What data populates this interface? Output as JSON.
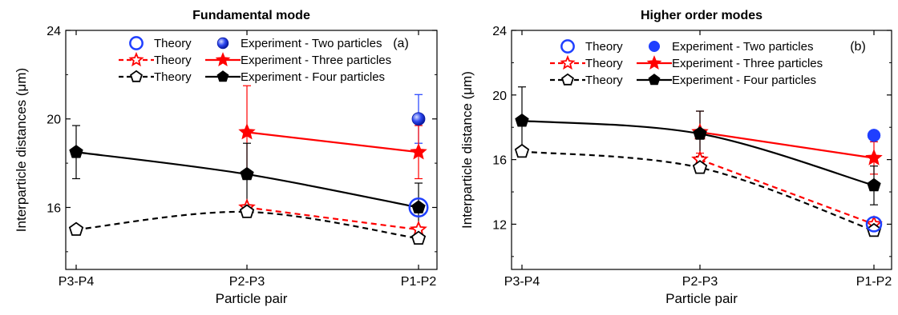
{
  "chart_data": [
    {
      "type": "line",
      "title": "Fundamental mode",
      "panel_label": "(a)",
      "xlabel": "Particle pair",
      "ylabel": "Interparticle distances (μm)",
      "categories": [
        "P3-P4",
        "P2-P3",
        "P1-P2"
      ],
      "ylim": [
        13.2,
        24
      ],
      "yticks": [
        "16",
        "20",
        "24"
      ],
      "legend_placement": "top-right",
      "legend": [
        {
          "theory": "Theory",
          "experiment": "Experiment - Two particles",
          "color": "#1f3fff",
          "theory_marker": "circle-open",
          "exp_marker": "sphere"
        },
        {
          "theory": "Theory",
          "experiment": "Experiment - Three particles",
          "color": "#ff0000",
          "theory_marker": "star-open",
          "exp_marker": "star"
        },
        {
          "theory": "Theory",
          "experiment": "Experiment - Four particles",
          "color": "#000000",
          "theory_marker": "pentagon-open",
          "exp_marker": "pentagon"
        }
      ],
      "series": [
        {
          "group": "two",
          "kind": "theory",
          "marker": "circle-open",
          "color": "#1f3fff",
          "line": "none",
          "points": [
            {
              "x": "P1-P2",
              "y": 16.0
            }
          ]
        },
        {
          "group": "two",
          "kind": "experiment",
          "marker": "sphere",
          "color": "#1f3fff",
          "line": "none",
          "points": [
            {
              "x": "P1-P2",
              "y": 20.0,
              "err": 1.1
            }
          ]
        },
        {
          "group": "three",
          "kind": "theory",
          "marker": "star-open",
          "color": "#ff0000",
          "line": "dashed",
          "points": [
            {
              "x": "P2-P3",
              "y": 16.0
            },
            {
              "x": "P1-P2",
              "y": 15.0
            }
          ]
        },
        {
          "group": "three",
          "kind": "experiment",
          "marker": "star",
          "color": "#ff0000",
          "line": "solid",
          "points": [
            {
              "x": "P2-P3",
              "y": 19.4,
              "err": 2.1
            },
            {
              "x": "P1-P2",
              "y": 18.5,
              "err": 1.2
            }
          ]
        },
        {
          "group": "four",
          "kind": "theory",
          "marker": "pentagon-open",
          "color": "#000000",
          "line": "dashed-curve",
          "points": [
            {
              "x": "P3-P4",
              "y": 15.0
            },
            {
              "x": "P2-P3",
              "y": 15.8
            },
            {
              "x": "P1-P2",
              "y": 14.6
            }
          ]
        },
        {
          "group": "four",
          "kind": "experiment",
          "marker": "pentagon",
          "color": "#000000",
          "line": "solid-curve",
          "points": [
            {
              "x": "P3-P4",
              "y": 18.5,
              "err": 1.2
            },
            {
              "x": "P2-P3",
              "y": 17.5,
              "err": 1.4
            },
            {
              "x": "P1-P2",
              "y": 16.0,
              "err": 1.1
            }
          ]
        }
      ]
    },
    {
      "type": "line",
      "title": "Higher order modes",
      "panel_label": "(b)",
      "xlabel": "Particle pair",
      "ylabel": "Interparticle distance (μm)",
      "categories": [
        "P3-P4",
        "P2-P3",
        "P1-P2"
      ],
      "ylim": [
        9.2,
        24
      ],
      "yticks": [
        "12",
        "16",
        "20",
        "24"
      ],
      "legend_placement": "top-right",
      "legend": [
        {
          "theory": "Theory",
          "experiment": "Experiment - Two particles",
          "color": "#1f3fff",
          "theory_marker": "circle-open",
          "exp_marker": "dot"
        },
        {
          "theory": "Theory",
          "experiment": "Experiment - Three particles",
          "color": "#ff0000",
          "theory_marker": "star-open",
          "exp_marker": "star"
        },
        {
          "theory": "Theory",
          "experiment": "Experiment - Four particles",
          "color": "#000000",
          "theory_marker": "pentagon-open",
          "exp_marker": "pentagon"
        }
      ],
      "series": [
        {
          "group": "two",
          "kind": "theory",
          "marker": "circle-open",
          "color": "#1f3fff",
          "line": "none",
          "points": [
            {
              "x": "P1-P2",
              "y": 12.0
            }
          ]
        },
        {
          "group": "two",
          "kind": "experiment",
          "marker": "dot",
          "color": "#1f3fff",
          "line": "none",
          "points": [
            {
              "x": "P1-P2",
              "y": 17.5
            }
          ]
        },
        {
          "group": "three",
          "kind": "theory",
          "marker": "star-open",
          "color": "#ff0000",
          "line": "dashed",
          "points": [
            {
              "x": "P2-P3",
              "y": 16.0
            },
            {
              "x": "P1-P2",
              "y": 12.0
            }
          ]
        },
        {
          "group": "three",
          "kind": "experiment",
          "marker": "star",
          "color": "#ff0000",
          "line": "solid",
          "points": [
            {
              "x": "P2-P3",
              "y": 17.7,
              "err": 1.3
            },
            {
              "x": "P1-P2",
              "y": 16.1,
              "err": 1.0
            }
          ]
        },
        {
          "group": "four",
          "kind": "theory",
          "marker": "pentagon-open",
          "color": "#000000",
          "line": "dashed-curve",
          "points": [
            {
              "x": "P3-P4",
              "y": 16.5
            },
            {
              "x": "P2-P3",
              "y": 15.5
            },
            {
              "x": "P1-P2",
              "y": 11.6
            }
          ]
        },
        {
          "group": "four",
          "kind": "experiment",
          "marker": "pentagon",
          "color": "#000000",
          "line": "solid-curve",
          "points": [
            {
              "x": "P3-P4",
              "y": 18.4,
              "err": 2.1
            },
            {
              "x": "P2-P3",
              "y": 17.6,
              "err": 1.4
            },
            {
              "x": "P1-P2",
              "y": 14.4,
              "err": 1.2
            }
          ]
        }
      ]
    }
  ]
}
